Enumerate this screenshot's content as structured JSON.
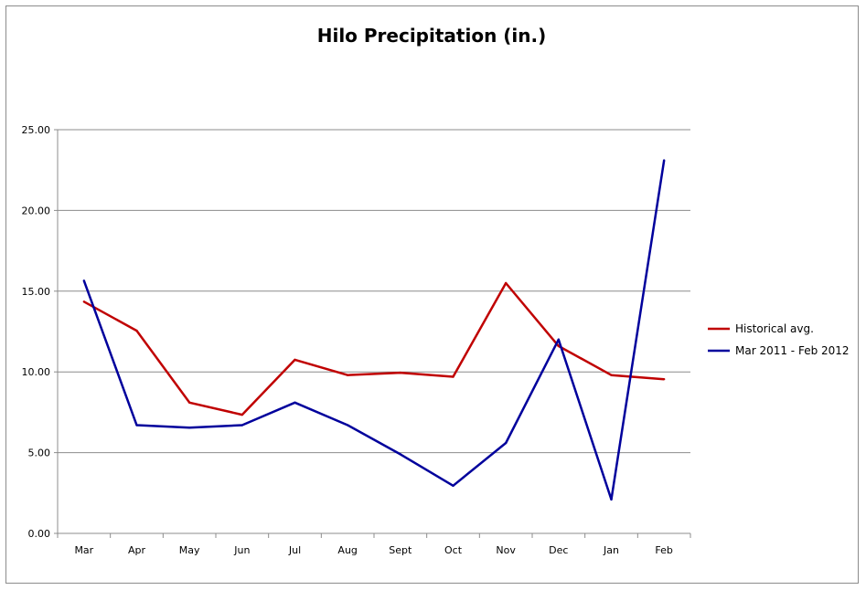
{
  "chart_data": {
    "type": "line",
    "title": "Hilo Precipitation (in.)",
    "xlabel": "",
    "ylabel": "",
    "categories": [
      "Mar",
      "Apr",
      "May",
      "Jun",
      "Jul",
      "Aug",
      "Sept",
      "Oct",
      "Nov",
      "Dec",
      "Jan",
      "Feb"
    ],
    "ylim": [
      0,
      25
    ],
    "y_ticks": [
      "0.00",
      "5.00",
      "10.00",
      "15.00",
      "20.00",
      "25.00"
    ],
    "grid": true,
    "legend_position": "right",
    "series": [
      {
        "name": "Historical avg.",
        "color": "#c00000",
        "values": [
          14.35,
          12.55,
          8.1,
          7.35,
          10.75,
          9.8,
          9.95,
          9.7,
          15.5,
          11.6,
          9.8,
          9.55
        ]
      },
      {
        "name": "Mar 2011 - Feb 2012",
        "color": "#00009c",
        "values": [
          15.65,
          6.7,
          6.55,
          6.7,
          8.1,
          6.7,
          4.9,
          2.95,
          5.6,
          12.0,
          2.1,
          23.1
        ]
      }
    ]
  }
}
